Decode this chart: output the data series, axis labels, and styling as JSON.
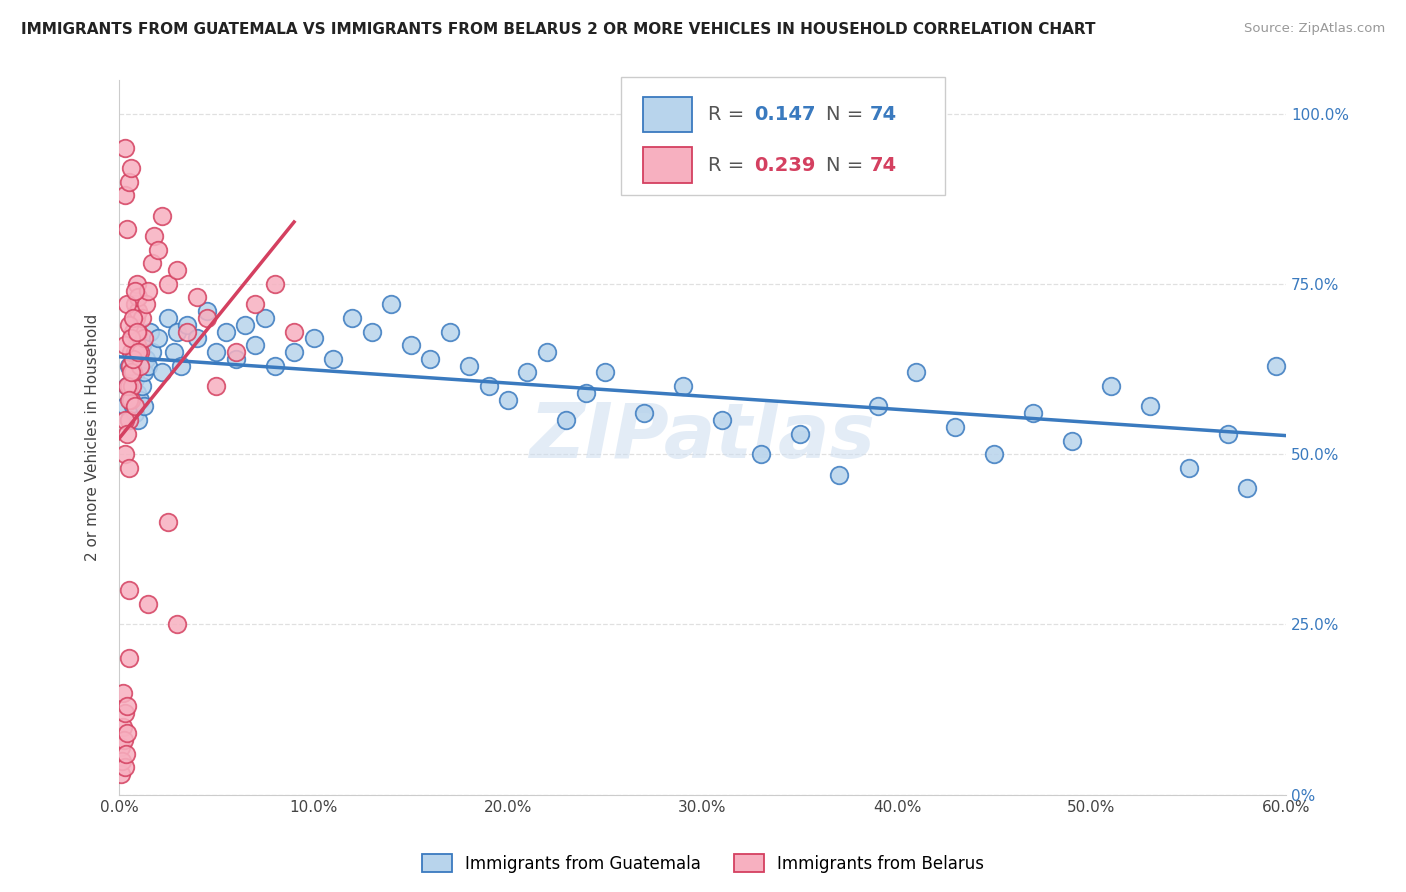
{
  "title": "IMMIGRANTS FROM GUATEMALA VS IMMIGRANTS FROM BELARUS 2 OR MORE VEHICLES IN HOUSEHOLD CORRELATION CHART",
  "source": "Source: ZipAtlas.com",
  "xlabel_ticks": [
    "0.0%",
    "10.0%",
    "20.0%",
    "30.0%",
    "40.0%",
    "50.0%",
    "60.0%"
  ],
  "xlabel_vals": [
    0,
    10,
    20,
    30,
    40,
    50,
    60
  ],
  "ylabel_labels": [
    "0%",
    "25.0%",
    "50.0%",
    "75.0%",
    "100.0%"
  ],
  "ylabel_vals": [
    0,
    25,
    50,
    75,
    100
  ],
  "xlim": [
    0,
    60
  ],
  "ylim": [
    0,
    105
  ],
  "guatemala_R": 0.147,
  "guatemala_N": 74,
  "belarus_R": 0.239,
  "belarus_N": 74,
  "guatemala_dot_color": "#b8d4ec",
  "belarus_dot_color": "#f7b0c0",
  "guatemala_line_color": "#3a7abf",
  "belarus_line_color": "#d44060",
  "background_color": "#ffffff",
  "grid_color": "#e0e0e0",
  "watermark_text": "ZIPatlas",
  "watermark_color": "#ccddf0",
  "title_fontsize": 11,
  "tick_fontsize": 11,
  "guatemala_x": [
    0.3,
    0.4,
    0.5,
    0.5,
    0.6,
    0.7,
    0.7,
    0.8,
    0.8,
    0.9,
    0.9,
    1.0,
    1.0,
    1.1,
    1.1,
    1.2,
    1.2,
    1.3,
    1.3,
    1.4,
    1.5,
    1.6,
    1.7,
    2.0,
    2.2,
    2.5,
    2.8,
    3.0,
    3.2,
    3.5,
    4.0,
    4.5,
    5.0,
    5.5,
    6.0,
    6.5,
    7.0,
    7.5,
    8.0,
    9.0,
    10.0,
    11.0,
    12.0,
    13.0,
    14.0,
    15.0,
    16.0,
    17.0,
    18.0,
    19.0,
    20.0,
    21.0,
    22.0,
    23.0,
    24.0,
    25.0,
    27.0,
    29.0,
    31.0,
    33.0,
    35.0,
    37.0,
    39.0,
    41.0,
    43.0,
    45.0,
    47.0,
    49.0,
    51.0,
    53.0,
    55.0,
    57.0,
    58.0,
    59.5
  ],
  "guatemala_y": [
    57,
    60,
    55,
    63,
    58,
    57,
    62,
    61,
    56,
    64,
    59,
    65,
    55,
    63,
    58,
    66,
    60,
    62,
    57,
    64,
    63,
    68,
    65,
    67,
    62,
    70,
    65,
    68,
    63,
    69,
    67,
    71,
    65,
    68,
    64,
    69,
    66,
    70,
    63,
    65,
    67,
    64,
    70,
    68,
    72,
    66,
    64,
    68,
    63,
    60,
    58,
    62,
    65,
    55,
    59,
    62,
    56,
    60,
    55,
    50,
    53,
    47,
    57,
    62,
    54,
    50,
    56,
    52,
    60,
    57,
    48,
    53,
    45,
    63
  ],
  "belarus_x": [
    0.1,
    0.1,
    0.15,
    0.2,
    0.2,
    0.25,
    0.3,
    0.3,
    0.35,
    0.4,
    0.4,
    0.5,
    0.5,
    0.55,
    0.6,
    0.6,
    0.65,
    0.7,
    0.7,
    0.8,
    0.8,
    0.85,
    0.9,
    0.9,
    0.95,
    1.0,
    1.0,
    1.1,
    1.1,
    1.2,
    1.3,
    1.4,
    1.5,
    1.7,
    1.8,
    2.0,
    2.2,
    2.5,
    3.0,
    3.5,
    4.0,
    4.5,
    5.0,
    6.0,
    7.0,
    8.0,
    9.0,
    0.3,
    0.4,
    0.5,
    0.6,
    0.7,
    0.8,
    0.3,
    0.4,
    0.5,
    0.3,
    0.5,
    0.4,
    0.6,
    0.7,
    0.8,
    0.9,
    1.0,
    0.5,
    0.5,
    3.0,
    1.5,
    0.3,
    0.3,
    0.4,
    0.5,
    0.6,
    2.5
  ],
  "belarus_y": [
    3,
    7,
    5,
    10,
    15,
    8,
    12,
    4,
    6,
    9,
    13,
    60,
    55,
    63,
    58,
    65,
    60,
    62,
    68,
    72,
    65,
    70,
    66,
    75,
    71,
    68,
    73,
    65,
    63,
    70,
    67,
    72,
    74,
    78,
    82,
    80,
    85,
    75,
    77,
    68,
    73,
    70,
    60,
    65,
    72,
    75,
    68,
    55,
    60,
    58,
    62,
    64,
    57,
    50,
    53,
    48,
    66,
    69,
    72,
    67,
    70,
    74,
    68,
    65,
    20,
    30,
    25,
    28,
    95,
    88,
    83,
    90,
    92,
    40
  ]
}
